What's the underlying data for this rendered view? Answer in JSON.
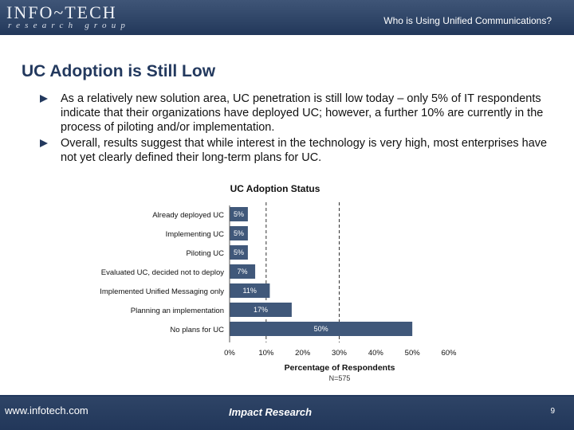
{
  "header": {
    "logo_main": "INFO~TECH",
    "logo_sub": "research group",
    "title": "Who is Using Unified Communications?"
  },
  "slide": {
    "title": "UC Adoption is Still Low",
    "bullets": [
      "As a relatively new solution area, UC penetration is still low today – only 5% of IT respondents indicate that their organizations have deployed UC; however, a further 10% are currently in the process of piloting and/or implementation.",
      "Overall, results suggest that while interest in the technology is very high, most enterprises have not yet clearly defined their long-term plans for UC."
    ]
  },
  "colors": {
    "brand_navy": "#23395e",
    "bar_fill": "#40587a"
  },
  "chart_data": {
    "type": "bar",
    "orientation": "horizontal",
    "title": "UC Adoption Status",
    "categories": [
      "Already deployed UC",
      "Implementing UC",
      "Piloting UC",
      "Evaluated UC, decided not to deploy",
      "Implemented Unified Messaging only",
      "Planning an implementation",
      "No plans for UC"
    ],
    "values": [
      5,
      5,
      5,
      7,
      11,
      17,
      50
    ],
    "value_labels": [
      "5%",
      "5%",
      "5%",
      "7%",
      "11%",
      "17%",
      "50%"
    ],
    "xlabel": "Percentage of Respondents",
    "xlim": [
      0,
      60
    ],
    "x_ticks": [
      "0%",
      "10%",
      "20%",
      "30%",
      "40%",
      "50%",
      "60%"
    ],
    "vertical_reference_lines": [
      10,
      30
    ],
    "note": "N=575",
    "grid": false,
    "legend": "none"
  },
  "footer": {
    "url": "www.infotech.com",
    "center": "Impact Research",
    "page": "9"
  }
}
